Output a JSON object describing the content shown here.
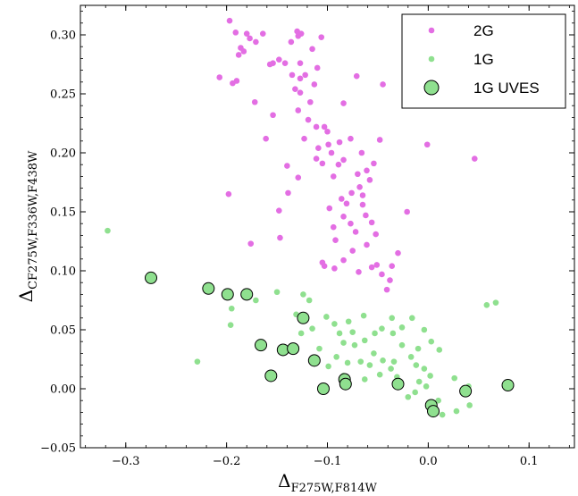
{
  "chart_data": {
    "type": "scatter",
    "title": "",
    "xlabel": {
      "main": "Δ",
      "sub": "F275W,F814W"
    },
    "ylabel": {
      "main": "Δ",
      "sub": "CF275W,F336W,F438W"
    },
    "xlim": [
      -0.345,
      0.145
    ],
    "ylim": [
      -0.05,
      0.325
    ],
    "xticks": [
      -0.3,
      -0.2,
      -0.1,
      0.0,
      0.1
    ],
    "xtick_labels": [
      "−0.3",
      "−0.2",
      "−0.1",
      "0.0",
      "0.1"
    ],
    "yticks": [
      -0.05,
      0.0,
      0.05,
      0.1,
      0.15,
      0.2,
      0.25,
      0.3
    ],
    "ytick_labels": [
      "−0.05",
      "0.00",
      "0.05",
      "0.10",
      "0.15",
      "0.20",
      "0.25",
      "0.30"
    ],
    "grid": false,
    "legend_position": "top-right",
    "series": [
      {
        "name": "2G",
        "color": "#e36ee3",
        "marker": "small-dot",
        "points": [
          [
            -0.197,
            0.312
          ],
          [
            -0.191,
            0.302
          ],
          [
            -0.18,
            0.301
          ],
          [
            -0.164,
            0.301
          ],
          [
            -0.177,
            0.297
          ],
          [
            -0.13,
            0.303
          ],
          [
            -0.126,
            0.301
          ],
          [
            -0.106,
            0.298
          ],
          [
            -0.129,
            0.299
          ],
          [
            -0.186,
            0.289
          ],
          [
            -0.183,
            0.286
          ],
          [
            -0.171,
            0.294
          ],
          [
            -0.136,
            0.294
          ],
          [
            -0.115,
            0.288
          ],
          [
            -0.188,
            0.283
          ],
          [
            -0.148,
            0.279
          ],
          [
            -0.154,
            0.276
          ],
          [
            -0.157,
            0.275
          ],
          [
            -0.142,
            0.276
          ],
          [
            -0.127,
            0.276
          ],
          [
            -0.11,
            0.272
          ],
          [
            -0.122,
            0.266
          ],
          [
            -0.207,
            0.264
          ],
          [
            -0.19,
            0.261
          ],
          [
            -0.194,
            0.259
          ],
          [
            -0.135,
            0.266
          ],
          [
            -0.127,
            0.263
          ],
          [
            -0.071,
            0.265
          ],
          [
            -0.045,
            0.258
          ],
          [
            -0.113,
            0.258
          ],
          [
            -0.132,
            0.254
          ],
          [
            -0.127,
            0.251
          ],
          [
            -0.172,
            0.243
          ],
          [
            -0.117,
            0.243
          ],
          [
            -0.084,
            0.242
          ],
          [
            -0.129,
            0.236
          ],
          [
            -0.154,
            0.232
          ],
          [
            -0.119,
            0.228
          ],
          [
            -0.111,
            0.222
          ],
          [
            -0.103,
            0.222
          ],
          [
            -0.1,
            0.218
          ],
          [
            -0.123,
            0.212
          ],
          [
            -0.099,
            0.207
          ],
          [
            -0.096,
            0.2
          ],
          [
            -0.088,
            0.209
          ],
          [
            -0.077,
            0.212
          ],
          [
            -0.048,
            0.211
          ],
          [
            -0.161,
            0.212
          ],
          [
            -0.109,
            0.204
          ],
          [
            -0.111,
            0.195
          ],
          [
            -0.084,
            0.194
          ],
          [
            -0.105,
            0.191
          ],
          [
            -0.089,
            0.19
          ],
          [
            -0.066,
            0.2
          ],
          [
            -0.054,
            0.191
          ],
          [
            -0.061,
            0.185
          ],
          [
            -0.07,
            0.182
          ],
          [
            -0.001,
            0.207
          ],
          [
            0.046,
            0.195
          ],
          [
            -0.094,
            0.18
          ],
          [
            -0.058,
            0.177
          ],
          [
            -0.068,
            0.171
          ],
          [
            -0.198,
            0.165
          ],
          [
            -0.139,
            0.166
          ],
          [
            -0.129,
            0.179
          ],
          [
            -0.14,
            0.189
          ],
          [
            -0.076,
            0.166
          ],
          [
            -0.086,
            0.161
          ],
          [
            -0.148,
            0.151
          ],
          [
            -0.098,
            0.153
          ],
          [
            -0.081,
            0.157
          ],
          [
            -0.065,
            0.164
          ],
          [
            -0.084,
            0.146
          ],
          [
            -0.065,
            0.156
          ],
          [
            -0.021,
            0.15
          ],
          [
            -0.094,
            0.137
          ],
          [
            -0.077,
            0.14
          ],
          [
            -0.062,
            0.147
          ],
          [
            -0.072,
            0.133
          ],
          [
            -0.056,
            0.141
          ],
          [
            -0.176,
            0.123
          ],
          [
            -0.147,
            0.128
          ],
          [
            -0.092,
            0.126
          ],
          [
            -0.052,
            0.131
          ],
          [
            -0.061,
            0.122
          ],
          [
            -0.075,
            0.117
          ],
          [
            -0.084,
            0.109
          ],
          [
            -0.103,
            0.104
          ],
          [
            -0.093,
            0.102
          ],
          [
            -0.056,
            0.103
          ],
          [
            -0.069,
            0.099
          ],
          [
            -0.051,
            0.105
          ],
          [
            -0.03,
            0.115
          ],
          [
            -0.046,
            0.097
          ],
          [
            -0.036,
            0.104
          ],
          [
            -0.038,
            0.092
          ],
          [
            -0.041,
            0.084
          ],
          [
            -0.105,
            0.107
          ]
        ]
      },
      {
        "name": "1G",
        "color": "#8fe08f",
        "marker": "small-dot",
        "points": [
          [
            -0.318,
            0.134
          ],
          [
            -0.229,
            0.023
          ],
          [
            -0.196,
            0.054
          ],
          [
            -0.195,
            0.068
          ],
          [
            -0.171,
            0.075
          ],
          [
            -0.15,
            0.082
          ],
          [
            -0.124,
            0.08
          ],
          [
            -0.118,
            0.075
          ],
          [
            -0.131,
            0.063
          ],
          [
            -0.115,
            0.051
          ],
          [
            -0.126,
            0.047
          ],
          [
            -0.101,
            0.061
          ],
          [
            -0.093,
            0.055
          ],
          [
            -0.079,
            0.057
          ],
          [
            -0.064,
            0.062
          ],
          [
            -0.036,
            0.06
          ],
          [
            -0.016,
            0.06
          ],
          [
            -0.088,
            0.047
          ],
          [
            -0.075,
            0.048
          ],
          [
            -0.063,
            0.041
          ],
          [
            -0.046,
            0.051
          ],
          [
            -0.035,
            0.047
          ],
          [
            -0.026,
            0.052
          ],
          [
            -0.004,
            0.05
          ],
          [
            -0.084,
            0.039
          ],
          [
            -0.073,
            0.037
          ],
          [
            -0.054,
            0.03
          ],
          [
            -0.026,
            0.037
          ],
          [
            -0.01,
            0.034
          ],
          [
            0.003,
            0.04
          ],
          [
            0.011,
            0.033
          ],
          [
            -0.091,
            0.027
          ],
          [
            -0.08,
            0.022
          ],
          [
            -0.067,
            0.023
          ],
          [
            -0.058,
            0.02
          ],
          [
            -0.045,
            0.024
          ],
          [
            -0.037,
            0.017
          ],
          [
            -0.034,
            0.023
          ],
          [
            -0.017,
            0.027
          ],
          [
            -0.012,
            0.02
          ],
          [
            -0.004,
            0.017
          ],
          [
            -0.099,
            0.019
          ],
          [
            -0.084,
            0.011
          ],
          [
            -0.063,
            0.008
          ],
          [
            -0.048,
            0.012
          ],
          [
            -0.031,
            0.01
          ],
          [
            -0.009,
            0.006
          ],
          [
            0.002,
            0.011
          ],
          [
            0.026,
            0.009
          ],
          [
            0.04,
            0.002
          ],
          [
            0.058,
            0.071
          ],
          [
            0.067,
            0.073
          ],
          [
            -0.02,
            -0.007
          ],
          [
            -0.013,
            -0.003
          ],
          [
            0.014,
            -0.022
          ],
          [
            0.028,
            -0.019
          ],
          [
            0.041,
            -0.014
          ],
          [
            0.01,
            -0.01
          ],
          [
            -0.002,
            0.002
          ],
          [
            -0.108,
            0.034
          ],
          [
            -0.053,
            0.047
          ]
        ]
      },
      {
        "name": "1G UVES",
        "color": "#8fe08f",
        "marker": "large-circle",
        "points": [
          [
            -0.275,
            0.094
          ],
          [
            -0.218,
            0.085
          ],
          [
            -0.199,
            0.08
          ],
          [
            -0.18,
            0.08
          ],
          [
            -0.166,
            0.037
          ],
          [
            -0.156,
            0.011
          ],
          [
            -0.144,
            0.033
          ],
          [
            -0.134,
            0.034
          ],
          [
            -0.124,
            0.06
          ],
          [
            -0.113,
            0.024
          ],
          [
            -0.104,
            0.0
          ],
          [
            -0.083,
            0.008
          ],
          [
            -0.082,
            0.004
          ],
          [
            -0.03,
            0.004
          ],
          [
            0.003,
            -0.014
          ],
          [
            0.005,
            -0.019
          ],
          [
            0.037,
            -0.002
          ],
          [
            0.079,
            0.003
          ]
        ]
      }
    ]
  }
}
